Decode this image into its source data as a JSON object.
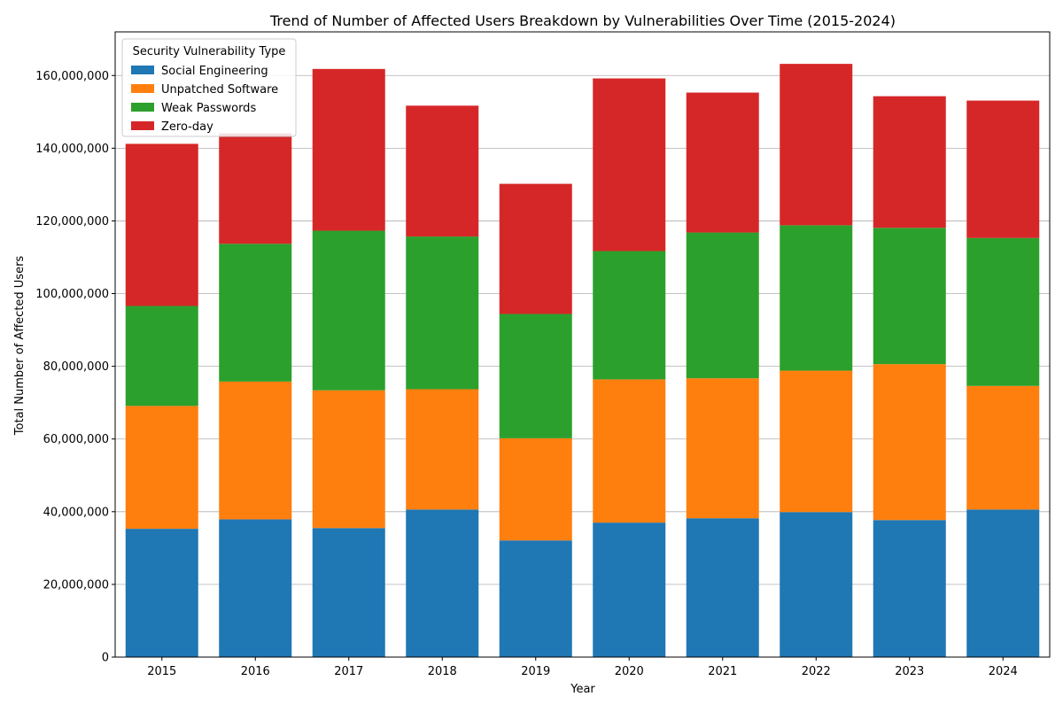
{
  "chart_data": {
    "type": "bar",
    "stacked": true,
    "title": "Trend of Number of Affected Users Breakdown by Vulnerabilities Over Time (2015-2024)",
    "xlabel": "Year",
    "ylabel": "Total Number of Affected Users",
    "categories": [
      "2015",
      "2016",
      "2017",
      "2018",
      "2019",
      "2020",
      "2021",
      "2022",
      "2023",
      "2024"
    ],
    "ylim": [
      0,
      172000000
    ],
    "yticks": [
      0,
      20000000,
      40000000,
      60000000,
      80000000,
      100000000,
      120000000,
      140000000,
      160000000
    ],
    "ytick_labels": [
      "0",
      "20,000,000",
      "40,000,000",
      "60,000,000",
      "80,000,000",
      "100,000,000",
      "120,000,000",
      "140,000,000",
      "160,000,000"
    ],
    "grid": "horizontal",
    "legend": {
      "title": "Security Vulnerability Type",
      "placement": "upper-left"
    },
    "series": [
      {
        "name": "Social Engineering",
        "color": "#1f77b4",
        "values": [
          35300000,
          37900000,
          35500000,
          40600000,
          32100000,
          37000000,
          38200000,
          39900000,
          37700000,
          40600000
        ]
      },
      {
        "name": "Unpatched Software",
        "color": "#ff7f0e",
        "values": [
          33800000,
          37900000,
          37900000,
          33100000,
          28100000,
          39400000,
          38500000,
          38900000,
          42900000,
          34000000
        ]
      },
      {
        "name": "Weak Passwords",
        "color": "#2ca02c",
        "values": [
          27500000,
          37900000,
          43900000,
          42000000,
          34200000,
          35300000,
          40100000,
          40000000,
          37500000,
          40700000
        ]
      },
      {
        "name": "Zero-day",
        "color": "#d62728",
        "values": [
          44600000,
          30400000,
          44500000,
          36000000,
          35800000,
          47500000,
          38500000,
          44400000,
          36200000,
          37800000
        ]
      }
    ]
  }
}
